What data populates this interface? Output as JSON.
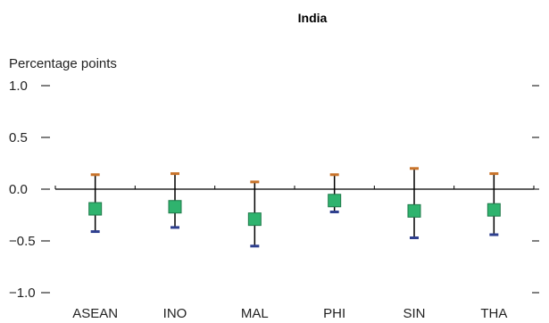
{
  "chart_data": {
    "type": "scatter",
    "title": "India",
    "ylabel": "Percentage points",
    "xlabel": "",
    "ylim": [
      -1.0,
      1.0
    ],
    "yticks": [
      1.0,
      0.5,
      0.0,
      -0.5,
      -1.0
    ],
    "ytick_labels": [
      "1.0",
      "0.5",
      "0.0",
      "−0.5",
      "−1.0"
    ],
    "categories": [
      "ASEAN",
      "INO",
      "MAL",
      "PHI",
      "SIN",
      "THA"
    ],
    "series": [
      {
        "values": [
          -0.19,
          -0.17,
          -0.29,
          -0.11,
          -0.21,
          -0.2
        ],
        "upper": [
          0.14,
          0.15,
          0.07,
          0.14,
          0.2,
          0.15
        ],
        "lower": [
          -0.41,
          -0.37,
          -0.55,
          -0.22,
          -0.47,
          -0.44
        ]
      }
    ],
    "grid": false,
    "legend": "none",
    "colors": {
      "title": "#8a4a12",
      "marker": "#2fb36e",
      "marker_edge": "#1f7a4a",
      "upper_cap": "#c8732a",
      "lower_cap": "#2e3f8f",
      "axis": "#000000"
    }
  }
}
